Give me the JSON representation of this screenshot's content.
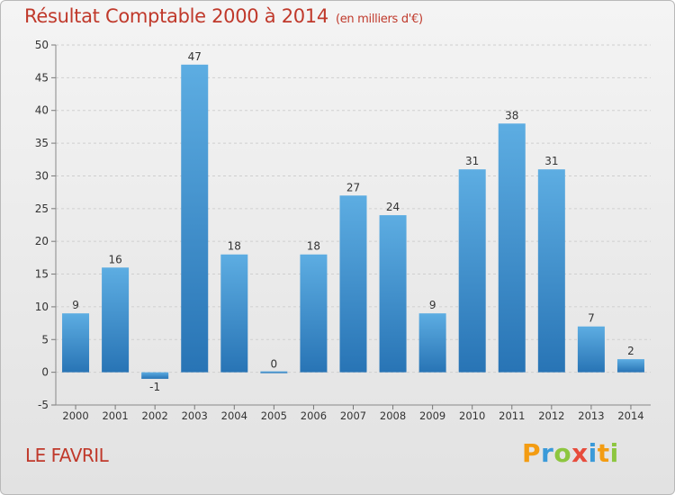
{
  "title": "Résultat Comptable 2000 à 2014",
  "subtitle": "(en milliers d'€)",
  "location": "LE FAVRIL",
  "logo": {
    "text": "Proxiti",
    "letters": [
      {
        "ch": "P",
        "color": "#f39c12"
      },
      {
        "ch": "r",
        "color": "#3a9ad9"
      },
      {
        "ch": "o",
        "color": "#8dc63f"
      },
      {
        "ch": "x",
        "color": "#e74c3c"
      },
      {
        "ch": "i",
        "color": "#3a9ad9"
      },
      {
        "ch": "t",
        "color": "#f39c12"
      },
      {
        "ch": "i",
        "color": "#8dc63f"
      }
    ]
  },
  "colors": {
    "bar_top": "#5dade2",
    "bar_bottom": "#2874b5",
    "title": "#c0392b",
    "grid": "#cfcfcf"
  },
  "chart_data": {
    "type": "bar",
    "categories": [
      "2000",
      "2001",
      "2002",
      "2003",
      "2004",
      "2005",
      "2006",
      "2007",
      "2008",
      "2009",
      "2010",
      "2011",
      "2012",
      "2013",
      "2014"
    ],
    "values": [
      9,
      16,
      -1,
      47,
      18,
      0,
      18,
      27,
      24,
      9,
      31,
      38,
      31,
      7,
      2
    ],
    "ylim": [
      -5,
      50
    ],
    "yticks": [
      -5,
      0,
      5,
      10,
      15,
      20,
      25,
      30,
      35,
      40,
      45,
      50
    ],
    "grid": true,
    "legend": "none"
  }
}
